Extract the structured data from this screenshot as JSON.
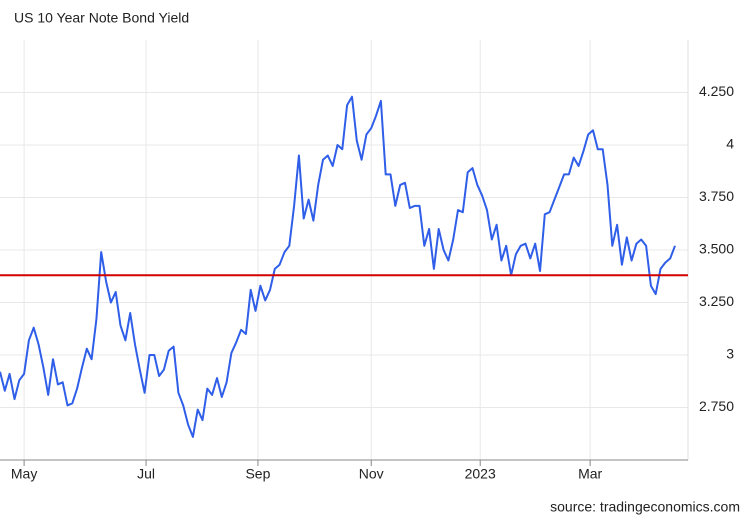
{
  "chart_data": {
    "type": "line",
    "title": "US 10 Year Note Bond Yield",
    "source": "source: tradingeconomics.com",
    "series": [
      {
        "name": "US 10 Year Note Bond Yield",
        "color": "#2f5ee8",
        "values": [
          2.92,
          2.83,
          2.91,
          2.79,
          2.88,
          2.91,
          3.07,
          3.13,
          3.05,
          2.94,
          2.81,
          2.98,
          2.86,
          2.87,
          2.76,
          2.77,
          2.84,
          2.94,
          3.03,
          2.98,
          3.17,
          3.49,
          3.35,
          3.25,
          3.3,
          3.14,
          3.07,
          3.2,
          3.05,
          2.93,
          2.82,
          3.0,
          3.0,
          2.9,
          2.93,
          3.02,
          3.04,
          2.82,
          2.76,
          2.67,
          2.61,
          2.74,
          2.69,
          2.84,
          2.81,
          2.89,
          2.8,
          2.87,
          3.01,
          3.06,
          3.12,
          3.1,
          3.31,
          3.21,
          3.33,
          3.26,
          3.31,
          3.41,
          3.43,
          3.49,
          3.52,
          3.71,
          3.95,
          3.65,
          3.74,
          3.64,
          3.81,
          3.93,
          3.95,
          3.9,
          4.0,
          3.98,
          4.19,
          4.23,
          4.02,
          3.93,
          4.05,
          4.08,
          4.14,
          4.21,
          3.86,
          3.86,
          3.71,
          3.81,
          3.82,
          3.7,
          3.71,
          3.71,
          3.52,
          3.6,
          3.41,
          3.6,
          3.5,
          3.45,
          3.55,
          3.69,
          3.68,
          3.87,
          3.89,
          3.81,
          3.76,
          3.69,
          3.55,
          3.62,
          3.45,
          3.52,
          3.38,
          3.48,
          3.52,
          3.53,
          3.46,
          3.53,
          3.4,
          3.67,
          3.68,
          3.74,
          3.8,
          3.86,
          3.86,
          3.94,
          3.9,
          3.97,
          4.05,
          4.07,
          3.98,
          3.98,
          3.81,
          3.52,
          3.62,
          3.43,
          3.56,
          3.45,
          3.53,
          3.55,
          3.52,
          3.33,
          3.29,
          3.41,
          3.44,
          3.46,
          3.52
        ]
      }
    ],
    "reference_line": {
      "value": 3.38,
      "color": "#d10000"
    },
    "xlim": [
      0,
      142.7
    ],
    "xticks": [
      {
        "value": 5,
        "label": "May"
      },
      {
        "value": 30.3,
        "label": "Jul"
      },
      {
        "value": 53.5,
        "label": "Sep"
      },
      {
        "value": 77,
        "label": "Nov"
      },
      {
        "value": 99.6,
        "label": "2023"
      },
      {
        "value": 122.4,
        "label": "Mar"
      }
    ],
    "ylim": [
      2.5,
      4.5
    ],
    "yticks": [
      {
        "value": 2.75,
        "label": "2.750"
      },
      3,
      {
        "value": 3.25,
        "label": "3.250"
      },
      {
        "value": 3.5,
        "label": "3.500"
      },
      {
        "value": 3.75,
        "label": "3.750"
      },
      4,
      {
        "value": 4.25,
        "label": "4.250"
      }
    ],
    "grid": true
  }
}
